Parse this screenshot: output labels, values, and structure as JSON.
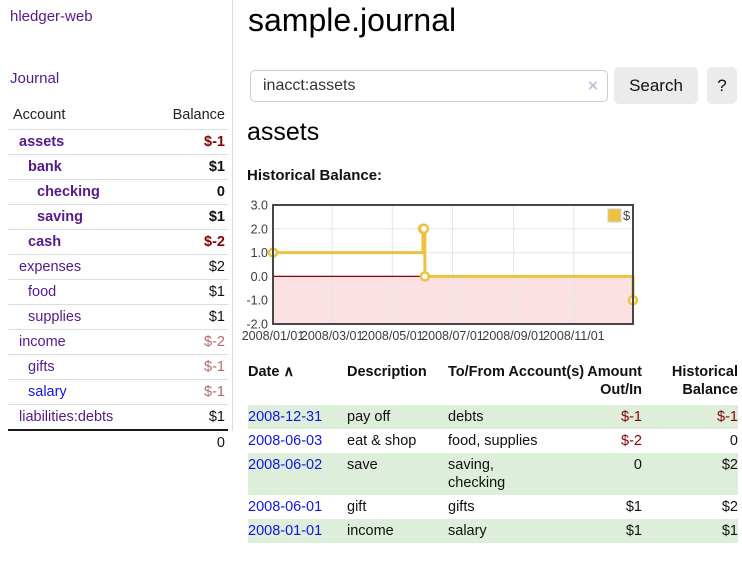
{
  "app": {
    "title": "hledger-web"
  },
  "colors": {
    "visited_link_purple": "#551a8b",
    "unvisited_link_blue": "#1414dd",
    "negative_strong_red": "#8b0000",
    "negative_soft_red": "#b36b6b",
    "stripe_green": "#ddeeda"
  },
  "sidebar": {
    "journal_link": "Journal",
    "accounts_table": {
      "headers": [
        "Account",
        "Balance"
      ],
      "rows": [
        {
          "name": "assets",
          "balance": "$-1",
          "indent": 1,
          "bold": true,
          "neg": "strong"
        },
        {
          "name": "bank",
          "balance": "$1",
          "indent": 2,
          "bold": true
        },
        {
          "name": "checking",
          "balance": "0",
          "indent": 3,
          "bold": true
        },
        {
          "name": "saving",
          "balance": "$1",
          "indent": 3,
          "bold": true
        },
        {
          "name": "cash",
          "balance": "$-2",
          "indent": 2,
          "bold": true,
          "neg": "strong"
        },
        {
          "name": "expenses",
          "balance": "$2",
          "indent": 1
        },
        {
          "name": "food",
          "balance": "$1",
          "indent": 2
        },
        {
          "name": "supplies",
          "balance": "$1",
          "indent": 2
        },
        {
          "name": "income",
          "balance": "$-2",
          "indent": 1,
          "neg": "soft"
        },
        {
          "name": "gifts",
          "balance": "$-1",
          "indent": 2,
          "neg": "soft"
        },
        {
          "name": "salary",
          "balance": "$-1",
          "indent": 2,
          "neg": "soft",
          "link": "blue"
        },
        {
          "name": "liabilities:debts",
          "balance": "$1",
          "indent": 1
        }
      ],
      "total": "0"
    }
  },
  "header": {
    "title": "sample.journal"
  },
  "search": {
    "value": "inacct:assets",
    "clear_icon": "×",
    "button_label": "Search",
    "help_label": "?"
  },
  "main": {
    "account_heading": "assets",
    "chart_label": "Historical Balance:"
  },
  "chart_data": {
    "type": "line",
    "title": "Historical Balance",
    "step": true,
    "ylim": [
      -2,
      3
    ],
    "grid": true,
    "legend_position": "top-right",
    "series": [
      {
        "name": "$",
        "color": "#edc240",
        "points": [
          {
            "date": "2008-01-01",
            "f": 0,
            "value": 1
          },
          {
            "date": "2008-06-01",
            "f": 0.4164,
            "value": 2
          },
          {
            "date": "2008-06-02",
            "f": 0.4192,
            "value": 2
          },
          {
            "date": "2008-06-03",
            "f": 0.4219,
            "value": 0
          },
          {
            "date": "2008-12-31",
            "f": 1,
            "value": -1
          }
        ]
      }
    ],
    "yticks": [
      {
        "v": 3,
        "label": "3.0"
      },
      {
        "v": 2,
        "label": "2.0"
      },
      {
        "v": 1,
        "label": "1.0"
      },
      {
        "v": 0,
        "label": "0.0"
      },
      {
        "v": -1,
        "label": "-1.0"
      },
      {
        "v": -2,
        "label": "-2.0"
      }
    ],
    "xticks": [
      {
        "f": 0,
        "label": "2008/01/01"
      },
      {
        "f": 0.1644,
        "label": "2008/03/01"
      },
      {
        "f": 0.3315,
        "label": "2008/05/01"
      },
      {
        "f": 0.4986,
        "label": "2008/07/01"
      },
      {
        "f": 0.6685,
        "label": "2008/09/01"
      },
      {
        "f": 0.8356,
        "label": "2008/11/01"
      }
    ],
    "zero_line_color": "#8b0000",
    "negative_fill": "#fbe1e1",
    "gridline_color": "#e6e6e6",
    "border_color": "#474747",
    "tick_label_color": "#3c3c3c",
    "legend": {
      "label": "$",
      "swatch_color": "#edc240"
    }
  },
  "register_table": {
    "headers": [
      "Date",
      "Description",
      "To/From Account(s)",
      "Amount Out/In",
      "Historical Balance"
    ],
    "sort_indicator": "∧",
    "rows": [
      {
        "date": "2008-12-31",
        "description": "pay off",
        "accounts": "debts",
        "amount": "$-1",
        "balance": "$-1"
      },
      {
        "date": "2008-06-03",
        "description": "eat & shop",
        "accounts": "food, supplies",
        "amount": "$-2",
        "balance": "0"
      },
      {
        "date": "2008-06-02",
        "description": "save",
        "accounts": "saving,\nchecking",
        "amount": "0",
        "balance": "$2"
      },
      {
        "date": "2008-06-01",
        "description": "gift",
        "accounts": "gifts",
        "amount": "$1",
        "balance": "$2"
      },
      {
        "date": "2008-01-01",
        "description": "income",
        "accounts": "salary",
        "amount": "$1",
        "balance": "$1"
      }
    ]
  }
}
